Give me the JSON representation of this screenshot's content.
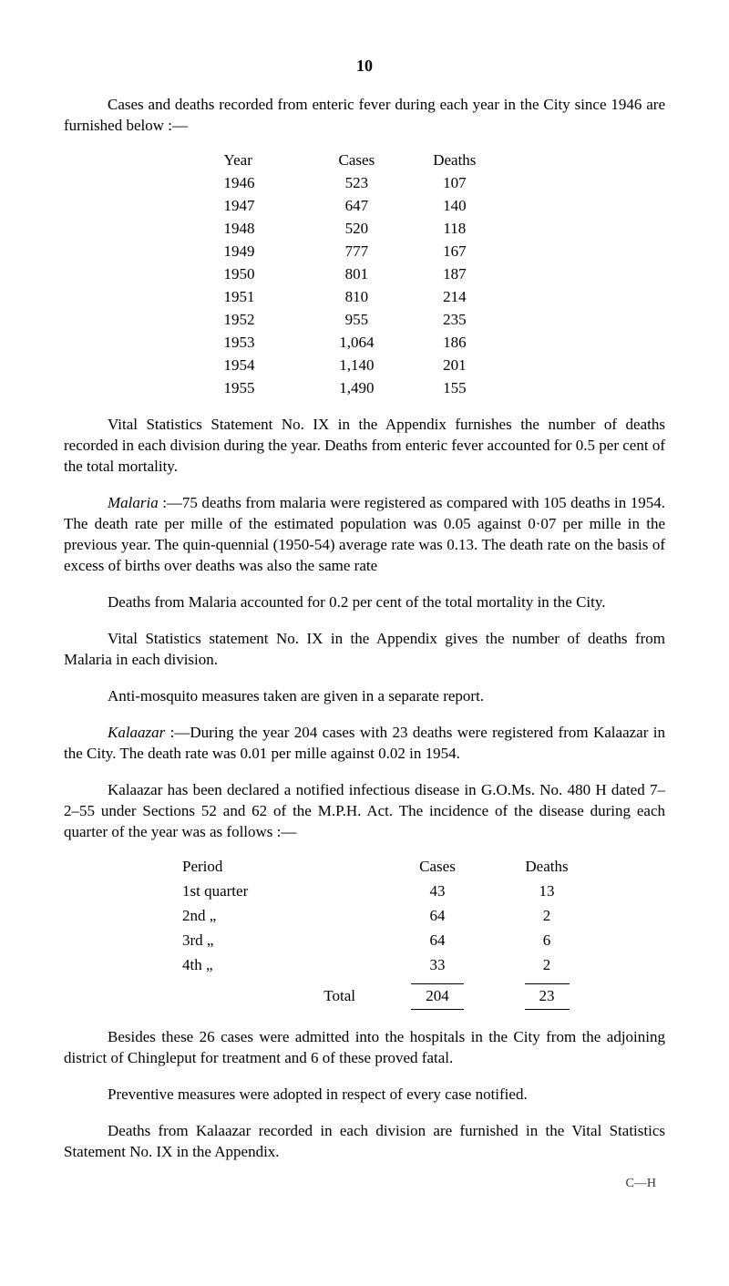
{
  "page_number": "10",
  "intro_para": "Cases and deaths recorded from enteric fever during each year in the City since 1946 are furnished below :—",
  "enteric_table": {
    "columns": [
      "Year",
      "Cases",
      "Deaths"
    ],
    "rows": [
      [
        "1946",
        "523",
        "107"
      ],
      [
        "1947",
        "647",
        "140"
      ],
      [
        "1948",
        "520",
        "118"
      ],
      [
        "1949",
        "777",
        "167"
      ],
      [
        "1950",
        "801",
        "187"
      ],
      [
        "1951",
        "810",
        "214"
      ],
      [
        "1952",
        "955",
        "235"
      ],
      [
        "1953",
        "1,064",
        "186"
      ],
      [
        "1954",
        "1,140",
        "201"
      ],
      [
        "1955",
        "1,490",
        "155"
      ]
    ]
  },
  "vital_para": "Vital Statistics Statement No. IX in the Appendix furnishes the number of deaths recorded in each division during the year.  Deaths from enteric fever accounted for 0.5 per cent of the total mortality.",
  "malaria_label": "Malaria",
  "malaria_para": " :—75 deaths from malaria were registered as compared with 105 deaths in 1954.  The death rate per mille of the estimated population was 0.05 against 0·07 per mille in the previous year.  The quin-quennial (1950-54) average rate was 0.13.  The death rate on the basis of excess of births over deaths was also the same rate",
  "malaria_deaths_para": "Deaths from Malaria accounted for 0.2 per cent of the total mortality in the City.",
  "vital_malaria_para": "Vital Statistics statement No. IX in the Appendix gives the number of deaths from Malaria in each division.",
  "antimosquito_para": "Anti-mosquito measures taken are given in a separate report.",
  "kalaazar_label": "Kalaazar",
  "kalaazar_para": " :—During the year 204 cases with 23 deaths were registered from Kalaazar in the City.  The death rate was 0.01 per mille against 0.02 in 1954.",
  "kalaazar_notified_para": "Kalaazar has been declared a notified infectious disease in G.O.Ms. No. 480 H dated 7–2–55 under Sections 52 and 62 of the M.P.H. Act.  The incidence of the disease during each quarter of the year was as follows :—",
  "quarter_table": {
    "columns": [
      "Period",
      "Cases",
      "Deaths"
    ],
    "rows": [
      [
        "1st quarter",
        "43",
        "13"
      ],
      [
        "2nd   „",
        "64",
        "2"
      ],
      [
        "3rd   „",
        "64",
        "6"
      ],
      [
        "4th   „",
        "33",
        "2"
      ]
    ],
    "total_label": "Total",
    "total_cases": "204",
    "total_deaths": "23"
  },
  "besides_para": "Besides these 26 cases were admitted into the hospitals in the City from the adjoining district of Chingleput for treatment and 6 of these proved fatal.",
  "preventive_para": "Preventive measures were adopted in respect of every case notified.",
  "deaths_kalaazar_para": "Deaths from Kalaazar recorded in each division are furnished in the Vital Statistics Statement No. IX in the Appendix.",
  "sig_text": "C—H"
}
